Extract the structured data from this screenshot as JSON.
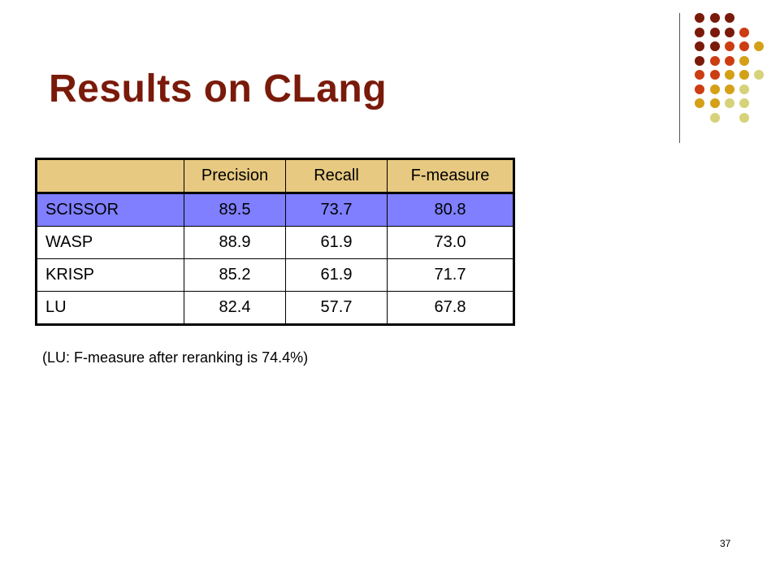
{
  "slide": {
    "title": "Results on CLang",
    "note": "(LU: F-measure after reranking is 74.4%)",
    "page_number": "37"
  },
  "table": {
    "headers": [
      "",
      "Precision",
      "Recall",
      "F-measure"
    ],
    "rows": [
      [
        "SCISSOR",
        "89.5",
        "73.7",
        "80.8"
      ],
      [
        "WASP",
        "88.9",
        "61.9",
        "73.0"
      ],
      [
        "KRISP",
        "85.2",
        "61.9",
        "71.7"
      ],
      [
        "LU",
        "82.4",
        "57.7",
        "67.8"
      ]
    ]
  },
  "colors": {
    "title": "#7a1a0a",
    "header_fill": "#e7c981",
    "highlight_fill": "#7f7fff",
    "dot_dark_red": "#7a1a0a",
    "dot_orange_red": "#cc3d12",
    "dot_gold": "#d4a017",
    "dot_pale_yellow": "#d6d27a"
  }
}
